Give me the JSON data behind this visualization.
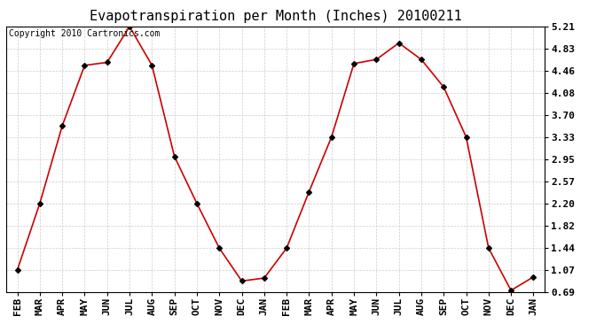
{
  "title": "Evapotranspiration per Month (Inches) 20100211",
  "copyright_text": "Copyright 2010 Cartronics.com",
  "x_labels": [
    "FEB",
    "MAR",
    "APR",
    "MAY",
    "JUN",
    "JUL",
    "AUG",
    "SEP",
    "OCT",
    "NOV",
    "DEC",
    "JAN",
    "FEB",
    "MAR",
    "APR",
    "MAY",
    "JUN",
    "JUL",
    "AUG",
    "SEP",
    "OCT",
    "NOV",
    "DEC",
    "JAN"
  ],
  "y_values": [
    1.07,
    2.2,
    3.52,
    4.55,
    4.6,
    5.21,
    4.55,
    3.0,
    2.2,
    1.44,
    0.88,
    0.93,
    1.44,
    2.4,
    3.33,
    4.58,
    4.65,
    4.93,
    4.65,
    4.18,
    3.33,
    1.44,
    0.72,
    0.95
  ],
  "yticks": [
    0.69,
    1.07,
    1.44,
    1.82,
    2.2,
    2.57,
    2.95,
    3.33,
    3.7,
    4.08,
    4.46,
    4.83,
    5.21
  ],
  "line_color": "#cc0000",
  "marker": "D",
  "marker_size": 3,
  "marker_color": "#000000",
  "background_color": "#ffffff",
  "plot_bg_color": "#ffffff",
  "grid_color": "#cccccc",
  "title_fontsize": 11,
  "copyright_fontsize": 7,
  "tick_fontsize": 8,
  "ylim_min": 0.69,
  "ylim_max": 5.21
}
